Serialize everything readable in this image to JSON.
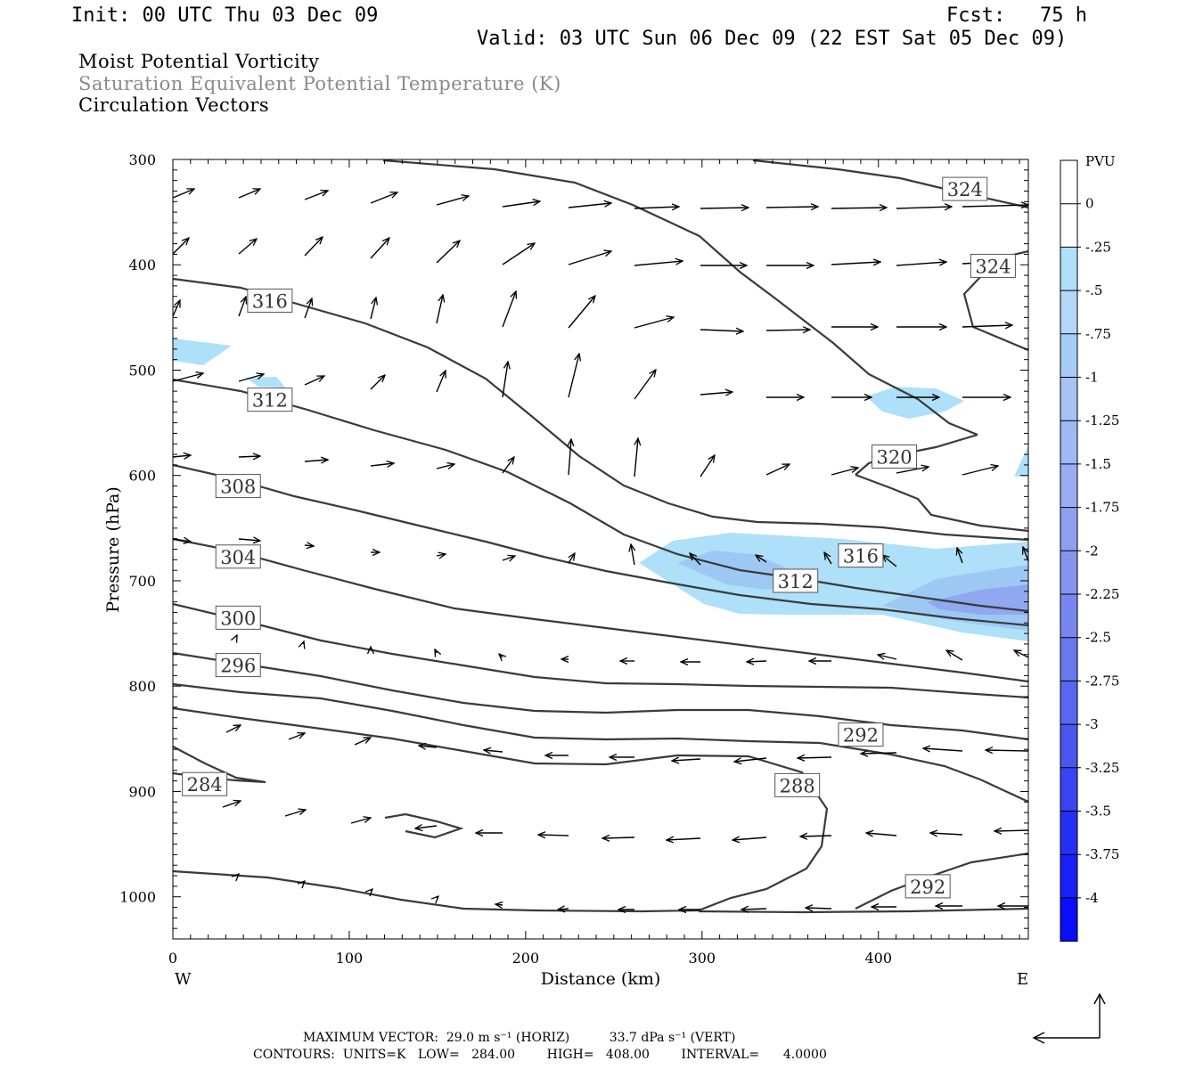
{
  "header": {
    "init": "Init: 00 UTC Thu 03 Dec 09",
    "fcst_label": "Fcst:",
    "fcst_value": "75 h",
    "valid": "Valid: 03 UTC Sun 06 Dec 09 (22 EST Sat 05 Dec 09)"
  },
  "titles": {
    "line1": "Moist Potential Vorticity",
    "line2": "Saturation Equivalent Potential Temperature (K)",
    "line3": "Circulation Vectors"
  },
  "colors": {
    "contour": "#3a3a3a",
    "vector": "#000000",
    "pv_fill_light": "#aee0fa",
    "pv_fill_mid": "#9ec8f4",
    "pv_fill_dark": "#8fa8f0"
  },
  "chart_data": {
    "type": "cross-section",
    "xlabel": "Distance (km)",
    "ylabel": "Pressure (hPa)",
    "xlim": [
      0,
      485
    ],
    "ylim": [
      1040,
      300
    ],
    "xticks": [
      0,
      100,
      200,
      300,
      400
    ],
    "yticks": [
      300,
      400,
      500,
      600,
      700,
      800,
      900,
      1000
    ],
    "x_end_labels": {
      "left": "W",
      "right": "E"
    },
    "contour_labels": [
      {
        "text": "316",
        "x": 55,
        "p": 434
      },
      {
        "text": "312",
        "x": 55,
        "p": 528
      },
      {
        "text": "308",
        "x": 37,
        "p": 610
      },
      {
        "text": "304",
        "x": 37,
        "p": 677
      },
      {
        "text": "300",
        "x": 37,
        "p": 735
      },
      {
        "text": "296",
        "x": 37,
        "p": 780
      },
      {
        "text": "284",
        "x": 18,
        "p": 893
      },
      {
        "text": "292",
        "x": 390,
        "p": 846
      },
      {
        "text": "288",
        "x": 354,
        "p": 894
      },
      {
        "text": "292",
        "x": 428,
        "p": 990
      },
      {
        "text": "320",
        "x": 409,
        "p": 582
      },
      {
        "text": "316",
        "x": 390,
        "p": 676
      },
      {
        "text": "312",
        "x": 353,
        "p": 700
      },
      {
        "text": "324",
        "x": 449,
        "p": 328
      },
      {
        "text": "324",
        "x": 465,
        "p": 401
      }
    ],
    "colorbar": {
      "unit": "PVU",
      "labels": [
        "0",
        "-.25",
        "-.5",
        "-.75",
        "-1",
        "-1.25",
        "-1.5",
        "-1.75",
        "-2",
        "-2.25",
        "-2.5",
        "-2.75",
        "-3",
        "-3.25",
        "-3.5",
        "-3.75",
        "-4"
      ]
    },
    "footer": {
      "line1": "MAXIMUM VECTOR:  29.0 m s⁻¹ (HORIZ)          33.7 dPa s⁻¹ (VERT)",
      "line2": "CONTOURS:  UNITS=K   LOW=   284.00        HIGH=   408.00        INTERVAL=      4.0000"
    }
  }
}
